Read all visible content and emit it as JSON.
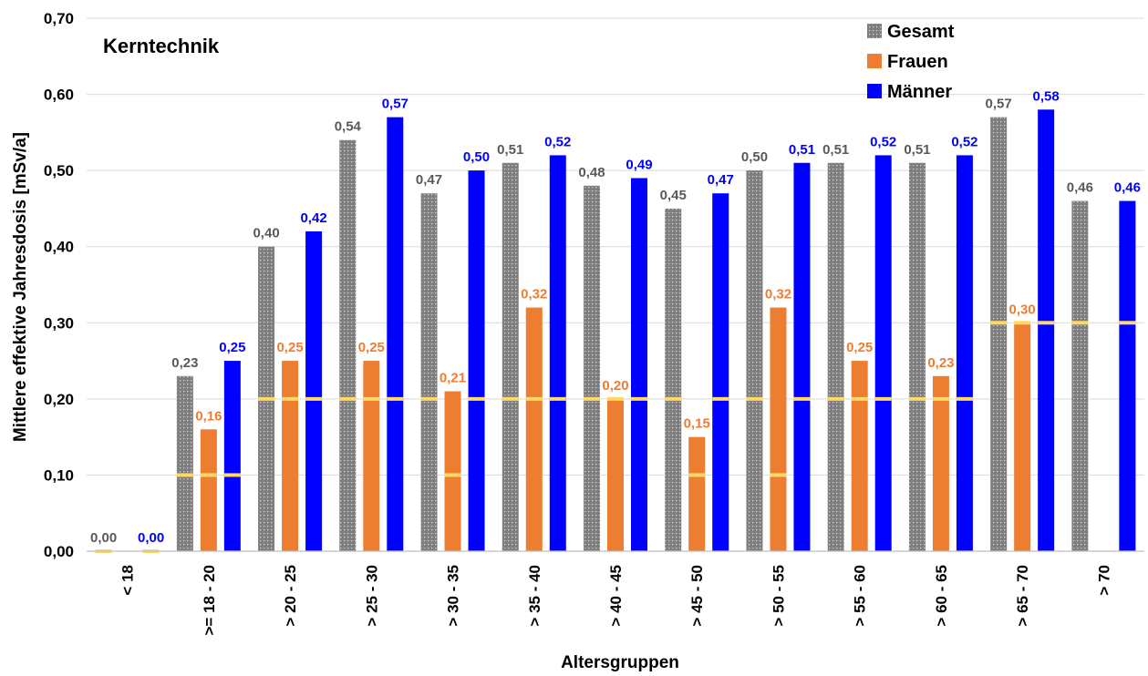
{
  "chart_data": {
    "type": "bar",
    "title": "Kerntechnik",
    "xlabel": "Altersgruppen",
    "ylabel": "Mittlere effektive Jahresdosis [mSv/a]",
    "ylim": [
      0,
      0.7
    ],
    "yticks": [
      "0,00",
      "0,10",
      "0,20",
      "0,30",
      "0,40",
      "0,50",
      "0,60",
      "0,70"
    ],
    "grid": true,
    "legend_position": "top-right",
    "categories": [
      "< 18",
      ">= 18 - 20",
      "> 20 - 25",
      "> 25 - 30",
      "> 30 - 35",
      "> 35 - 40",
      "> 40 - 45",
      "> 45 - 50",
      "> 50 - 55",
      "> 55 - 60",
      "> 60 - 65",
      "> 65 - 70",
      "> 70"
    ],
    "series": [
      {
        "name": "Gesamt",
        "color": "#808080",
        "label_color": "#595959",
        "values": [
          0.0,
          0.23,
          0.4,
          0.54,
          0.47,
          0.51,
          0.48,
          0.45,
          0.5,
          0.51,
          0.51,
          0.57,
          0.46
        ],
        "labels": [
          "0,00",
          "0,23",
          "0,40",
          "0,54",
          "0,47",
          "0,51",
          "0,48",
          "0,45",
          "0,50",
          "0,51",
          "0,51",
          "0,57",
          "0,46"
        ],
        "medians": [
          0.0,
          0.1,
          0.2,
          0.2,
          0.2,
          0.2,
          0.2,
          0.2,
          0.2,
          0.2,
          0.2,
          0.3,
          0.3
        ]
      },
      {
        "name": "Frauen",
        "color": "#ED7D31",
        "label_color": "#ED7D31",
        "values": [
          null,
          0.16,
          0.25,
          0.25,
          0.21,
          0.32,
          0.2,
          0.15,
          0.32,
          0.25,
          0.23,
          0.3,
          null
        ],
        "labels": [
          "",
          "0,16",
          "0,25",
          "0,25",
          "0,21",
          "0,32",
          "0,20",
          "0,15",
          "0,32",
          "0,25",
          "0,23",
          "0,30",
          ""
        ],
        "medians": [
          null,
          0.1,
          0.2,
          0.2,
          0.1,
          0.2,
          0.2,
          0.1,
          0.1,
          0.2,
          0.2,
          0.3,
          null
        ]
      },
      {
        "name": "Männer",
        "color": "#0000FF",
        "label_color": "#0000FF",
        "values": [
          0.0,
          0.25,
          0.42,
          0.57,
          0.5,
          0.52,
          0.49,
          0.47,
          0.51,
          0.52,
          0.52,
          0.58,
          0.46
        ],
        "labels": [
          "0,00",
          "0,25",
          "0,42",
          "0,57",
          "0,50",
          "0,52",
          "0,49",
          "0,47",
          "0,51",
          "0,52",
          "0,52",
          "0,58",
          "0,46"
        ],
        "medians": [
          0.0,
          0.1,
          0.2,
          0.2,
          0.2,
          0.2,
          0.2,
          0.2,
          0.2,
          0.2,
          0.2,
          0.3,
          0.3
        ]
      }
    ],
    "median_marker_color": "#FFD966"
  }
}
